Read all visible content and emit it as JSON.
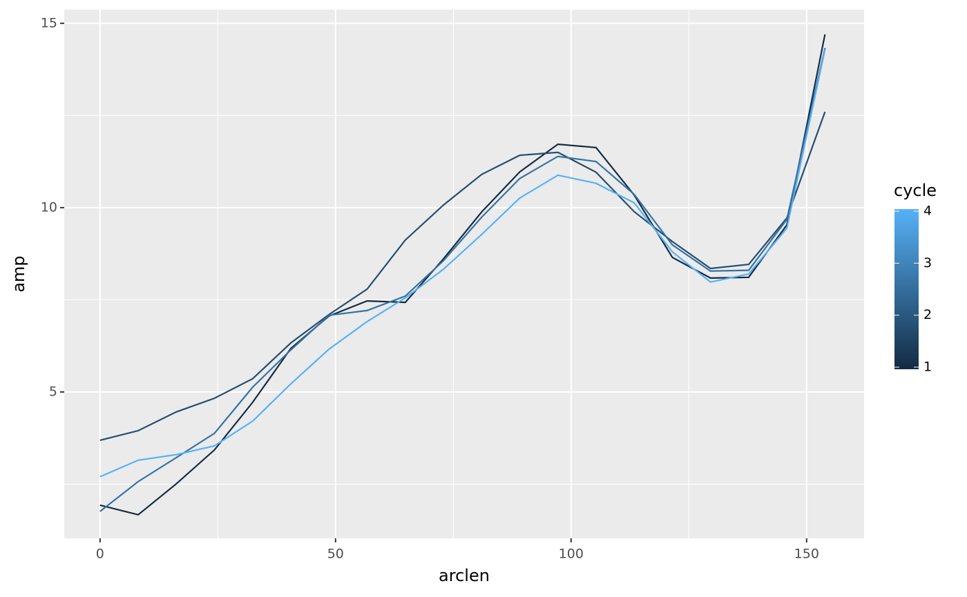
{
  "chart_data": {
    "type": "line",
    "x_label": "arclen",
    "y_label": "amp",
    "x": [
      0,
      8.1,
      16.2,
      24.3,
      32.4,
      40.5,
      48.6,
      56.7,
      64.8,
      72.9,
      81,
      89.1,
      97.2,
      105.3,
      113.4,
      121.5,
      129.6,
      137.7,
      145.8,
      153.9
    ],
    "series": [
      {
        "color": "#132B43",
        "values": [
          1.93,
          1.67,
          2.51,
          3.43,
          4.72,
          6.18,
          7.06,
          7.47,
          7.43,
          8.61,
          9.88,
          10.97,
          11.72,
          11.63,
          10.34,
          8.65,
          8.09,
          8.11,
          9.53,
          14.7
        ]
      },
      {
        "color": "#244D70",
        "values": [
          3.69,
          3.95,
          4.46,
          4.83,
          5.36,
          6.33,
          7.1,
          7.79,
          9.12,
          10.07,
          10.9,
          11.42,
          11.5,
          10.96,
          9.89,
          9.08,
          8.35,
          8.46,
          9.72,
          12.6
        ]
      },
      {
        "color": "#3672A4",
        "values": [
          1.76,
          2.57,
          3.22,
          3.88,
          5.13,
          6.14,
          7.08,
          7.21,
          7.6,
          8.56,
          9.74,
          10.79,
          11.39,
          11.25,
          10.36,
          8.99,
          8.28,
          8.3,
          9.68,
          14.33
        ]
      },
      {
        "color": "#56B1F7",
        "values": [
          2.7,
          3.15,
          3.3,
          3.54,
          4.21,
          5.22,
          6.16,
          6.91,
          7.55,
          8.33,
          9.27,
          10.26,
          10.88,
          10.66,
          10.13,
          8.8,
          7.98,
          8.2,
          9.44,
          14.29
        ]
      }
    ],
    "xlim": [
      -7.6,
      162.2
    ],
    "ylim": [
      1.03,
      15.37
    ],
    "xticks": [
      0,
      50,
      100,
      150
    ],
    "yticks": [
      5,
      10,
      15
    ],
    "x_minor": [
      25,
      75,
      125
    ],
    "y_minor": [
      2.5,
      7.5,
      12.5
    ],
    "grid": true,
    "legend": {
      "title": "cycle",
      "ticks": [
        1,
        2,
        3,
        4
      ],
      "colors": [
        "#132B43",
        "#56B1F7"
      ]
    }
  }
}
